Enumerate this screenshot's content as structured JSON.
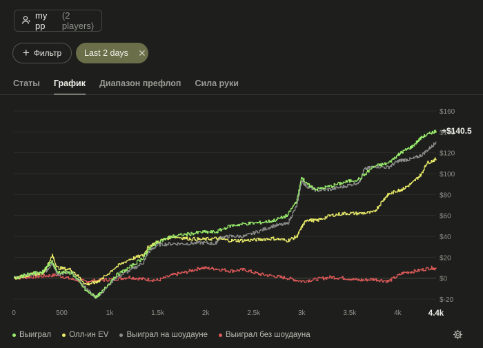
{
  "player": {
    "name": "my pp",
    "count": "(2 players)",
    "icon": "user-icon"
  },
  "filter": {
    "label": "Фильтр",
    "icon": "plus-icon"
  },
  "chip": {
    "label": "Last 2 days",
    "icon": "close-icon"
  },
  "tabs": [
    {
      "label": "Статы",
      "active": false
    },
    {
      "label": "График",
      "active": true
    },
    {
      "label": "Диапазон префлоп",
      "active": false
    },
    {
      "label": "Сила руки",
      "active": false
    }
  ],
  "legend": [
    {
      "label": "Выиграл",
      "color": "#9bef6e"
    },
    {
      "label": "Олл-ин EV",
      "color": "#eced6a"
    },
    {
      "label": "Выиграл на шоудауне",
      "color": "#8d8f8c"
    },
    {
      "label": "Выиграл без шоудауна",
      "color": "#e05a5a"
    }
  ],
  "settings_icon": "gear-icon",
  "chart_data": {
    "type": "line",
    "final_label": "+$140.5",
    "last_x_label": "4.4k",
    "xlim": [
      0,
      4400
    ],
    "ylim": [
      -20,
      160
    ],
    "x_ticks": [
      {
        "v": 0,
        "t": "0"
      },
      {
        "v": 500,
        "t": "500"
      },
      {
        "v": 1000,
        "t": "1k"
      },
      {
        "v": 1500,
        "t": "1.5k"
      },
      {
        "v": 2000,
        "t": "2k"
      },
      {
        "v": 2500,
        "t": "2.5k"
      },
      {
        "v": 3000,
        "t": "3k"
      },
      {
        "v": 3500,
        "t": "3.5k"
      },
      {
        "v": 4000,
        "t": "4k"
      }
    ],
    "y_ticks": [
      {
        "v": 160,
        "t": "$160"
      },
      {
        "v": 140,
        "t": "$140"
      },
      {
        "v": 120,
        "t": "$120"
      },
      {
        "v": 100,
        "t": "$100"
      },
      {
        "v": 80,
        "t": "$80"
      },
      {
        "v": 60,
        "t": "$60"
      },
      {
        "v": 40,
        "t": "$40"
      },
      {
        "v": 20,
        "t": "$20"
      },
      {
        "v": 0,
        "t": "$0"
      },
      {
        "v": -20,
        "t": "$-20"
      }
    ],
    "series": [
      {
        "name": "Выиграл no showdown",
        "color": "#e05a5a",
        "key": "red",
        "x": [
          0,
          150,
          300,
          450,
          600,
          750,
          900,
          1050,
          1200,
          1350,
          1500,
          1650,
          1800,
          1950,
          2100,
          2250,
          2400,
          2550,
          2700,
          2850,
          3000,
          3150,
          3300,
          3450,
          3600,
          3750,
          3900,
          4050,
          4200,
          4350,
          4400
        ],
        "y": [
          0,
          1,
          2,
          3,
          -1,
          -3,
          -2,
          -1,
          1,
          -1,
          -2,
          3,
          6,
          10,
          9,
          7,
          8,
          4,
          2,
          0,
          -3,
          -1,
          1,
          0,
          -2,
          -1,
          -3,
          5,
          7,
          10,
          9
        ]
      },
      {
        "name": "Выиграл на шоудауне",
        "color": "#8d8f8c",
        "key": "gray",
        "x": [
          0,
          150,
          300,
          350,
          400,
          450,
          600,
          750,
          850,
          900,
          1050,
          1200,
          1350,
          1400,
          1500,
          1650,
          1800,
          1950,
          2100,
          2150,
          2250,
          2400,
          2550,
          2700,
          2850,
          2950,
          3000,
          3050,
          3150,
          3300,
          3450,
          3600,
          3650,
          3750,
          3900,
          4000,
          4050,
          4150,
          4250,
          4350,
          4400
        ],
        "y": [
          0,
          3,
          5,
          8,
          15,
          4,
          5,
          -10,
          -18,
          -15,
          0,
          7,
          15,
          25,
          32,
          33,
          33,
          34,
          33,
          39,
          40,
          40,
          45,
          50,
          52,
          70,
          93,
          88,
          84,
          85,
          88,
          92,
          104,
          107,
          106,
          112,
          113,
          114,
          118,
          126,
          130
        ]
      },
      {
        "name": "Олл-ин EV",
        "color": "#eced6a",
        "key": "yellow",
        "x": [
          0,
          150,
          300,
          350,
          400,
          450,
          600,
          750,
          850,
          900,
          1050,
          1200,
          1350,
          1400,
          1500,
          1650,
          1800,
          1950,
          2100,
          2250,
          2400,
          2550,
          2700,
          2850,
          2950,
          3000,
          3050,
          3150,
          3300,
          3450,
          3600,
          3750,
          3850,
          3900,
          4000,
          4050,
          4150,
          4250,
          4300,
          4400
        ],
        "y": [
          0,
          3,
          5,
          12,
          22,
          10,
          8,
          -6,
          -4,
          -2,
          10,
          18,
          22,
          30,
          35,
          40,
          38,
          37,
          38,
          36,
          36,
          37,
          38,
          36,
          40,
          49,
          56,
          55,
          60,
          62,
          62,
          63,
          75,
          80,
          84,
          85,
          91,
          100,
          110,
          114
        ]
      },
      {
        "name": "Выиграл",
        "color": "#9bef6e",
        "key": "green",
        "x": [
          0,
          150,
          300,
          350,
          400,
          450,
          600,
          750,
          850,
          900,
          1050,
          1200,
          1350,
          1400,
          1500,
          1650,
          1800,
          1950,
          2100,
          2250,
          2400,
          2550,
          2700,
          2850,
          2950,
          3000,
          3050,
          3150,
          3300,
          3450,
          3600,
          3750,
          3900,
          4000,
          4050,
          4150,
          4250,
          4350,
          4400
        ],
        "y": [
          0,
          4,
          6,
          12,
          16,
          6,
          5,
          -12,
          -18,
          -15,
          2,
          10,
          20,
          27,
          35,
          40,
          42,
          44,
          44,
          50,
          52,
          53,
          55,
          60,
          75,
          97,
          90,
          85,
          88,
          92,
          95,
          107,
          110,
          118,
          121,
          126,
          135,
          139,
          141
        ]
      }
    ]
  }
}
